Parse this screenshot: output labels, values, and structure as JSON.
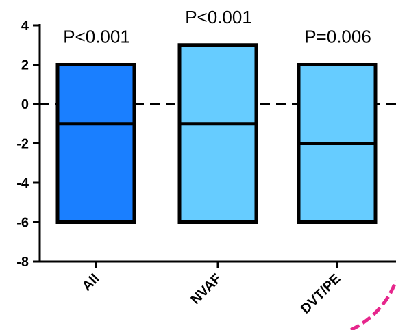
{
  "chart_data": {
    "type": "box",
    "categories": [
      "All",
      "NVAF",
      "DVT/PE"
    ],
    "boxes": [
      {
        "category": "All",
        "min": -6,
        "median": -1,
        "max": 2,
        "color": "#1a7fff"
      },
      {
        "category": "NVAF",
        "min": -6,
        "median": -1,
        "max": 3,
        "color": "#66ccff"
      },
      {
        "category": "DVT/PE",
        "min": -6,
        "median": -2,
        "max": 2,
        "color": "#66ccff"
      }
    ],
    "p_values": [
      "P<0.001",
      "P<0.001",
      "P=0.006"
    ],
    "yticks": [
      "4",
      "2",
      "0",
      "-2",
      "-4",
      "-6",
      "-8"
    ],
    "ylim": [
      -8,
      4
    ],
    "reference_line": {
      "y": 0,
      "style": "dashed"
    },
    "grid": false,
    "title": "",
    "xlabel": "",
    "ylabel": ""
  },
  "colors": {
    "accent_annotation": "#e6268c"
  }
}
